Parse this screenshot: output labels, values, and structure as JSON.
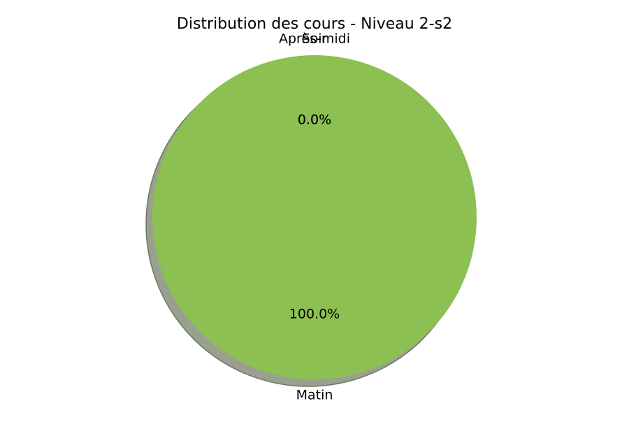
{
  "chart_data": {
    "type": "pie",
    "title": "Distribution des cours - Niveau 2-s2",
    "slices": [
      {
        "label": "Matin",
        "value": 100.0,
        "pct_label": "100.0%",
        "color": "#8dc052"
      },
      {
        "label": "Après-midi",
        "value": 0.0,
        "pct_label": "0.0%",
        "color": "#8dc052"
      },
      {
        "label": "Soir",
        "value": 0.0,
        "pct_label": "0.0%",
        "color": "#8dc052"
      }
    ],
    "shadow": true,
    "shadow_color": "#9aa08f",
    "start_angle_deg": 90,
    "legend": "none"
  }
}
